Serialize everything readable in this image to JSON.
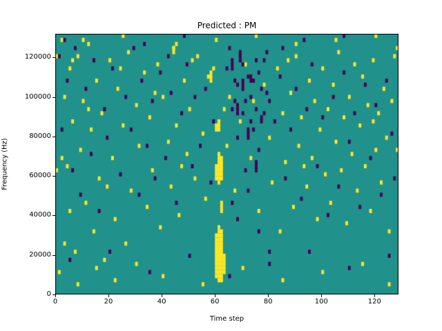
{
  "chart_data": {
    "type": "heatmap",
    "title": "Predicted : PM",
    "xlabel": "Time step",
    "ylabel": "Frequency (Hz)",
    "xlim": [
      0,
      129
    ],
    "ylim": [
      0,
      132000
    ],
    "x_bins": 129,
    "y_bins": 64,
    "xticks": [
      0,
      20,
      40,
      60,
      80,
      100,
      120
    ],
    "yticks": [
      0,
      20000,
      40000,
      60000,
      80000,
      100000,
      120000
    ],
    "grid": false,
    "legend": null,
    "colors": {
      "background": "#21918c",
      "high": "#fde725",
      "low": "#440154",
      "axis": "#000000"
    },
    "yellow_runs": [
      [
        60,
        4,
        14
      ],
      [
        61,
        3,
        16
      ],
      [
        62,
        3,
        15
      ],
      [
        63,
        5,
        9
      ],
      [
        60,
        28,
        31
      ],
      [
        61,
        27,
        34
      ],
      [
        62,
        28,
        33
      ],
      [
        60,
        40,
        41
      ],
      [
        61,
        40,
        42
      ],
      [
        62,
        20,
        22
      ],
      [
        58,
        52,
        54
      ],
      [
        44,
        59,
        60
      ]
    ],
    "purple_runs": [
      [
        66,
        55,
        57
      ],
      [
        68,
        44,
        46
      ],
      [
        70,
        50,
        52
      ],
      [
        72,
        38,
        40
      ],
      [
        75,
        30,
        32
      ],
      [
        69,
        57,
        59
      ],
      [
        73,
        52,
        53
      ],
      [
        77,
        42,
        43
      ]
    ],
    "yellow_cells": [
      [
        2,
        62
      ],
      [
        3,
        48
      ],
      [
        4,
        31
      ],
      [
        5,
        55
      ],
      [
        5,
        20
      ],
      [
        6,
        42
      ],
      [
        7,
        10
      ],
      [
        8,
        58
      ],
      [
        9,
        35
      ],
      [
        10,
        47
      ],
      [
        11,
        22
      ],
      [
        12,
        61
      ],
      [
        13,
        40
      ],
      [
        14,
        15
      ],
      [
        15,
        52
      ],
      [
        16,
        28
      ],
      [
        17,
        44
      ],
      [
        18,
        8
      ],
      [
        20,
        57
      ],
      [
        21,
        33
      ],
      [
        22,
        18
      ],
      [
        23,
        50
      ],
      [
        25,
        41
      ],
      [
        26,
        12
      ],
      [
        27,
        59
      ],
      [
        28,
        25
      ],
      [
        30,
        46
      ],
      [
        31,
        36
      ],
      [
        33,
        54
      ],
      [
        34,
        21
      ],
      [
        35,
        43
      ],
      [
        36,
        30
      ],
      [
        38,
        56
      ],
      [
        39,
        16
      ],
      [
        40,
        48
      ],
      [
        42,
        37
      ],
      [
        43,
        26
      ],
      [
        44,
        60
      ],
      [
        45,
        41
      ],
      [
        46,
        19
      ],
      [
        48,
        52
      ],
      [
        49,
        34
      ],
      [
        50,
        45
      ],
      [
        52,
        28
      ],
      [
        53,
        58
      ],
      [
        55,
        39
      ],
      [
        56,
        23
      ],
      [
        57,
        53
      ],
      [
        59,
        55
      ],
      [
        64,
        36
      ],
      [
        65,
        48
      ],
      [
        67,
        25
      ],
      [
        69,
        42
      ],
      [
        71,
        56
      ],
      [
        73,
        33
      ],
      [
        74,
        47
      ],
      [
        76,
        20
      ],
      [
        78,
        51
      ],
      [
        80,
        38
      ],
      [
        81,
        27
      ],
      [
        83,
        55
      ],
      [
        84,
        15
      ],
      [
        85,
        44
      ],
      [
        86,
        32
      ],
      [
        88,
        49
      ],
      [
        89,
        21
      ],
      [
        90,
        58
      ],
      [
        91,
        36
      ],
      [
        92,
        43
      ],
      [
        94,
        26
      ],
      [
        95,
        52
      ],
      [
        96,
        33
      ],
      [
        97,
        47
      ],
      [
        98,
        18
      ],
      [
        99,
        40
      ],
      [
        100,
        55
      ],
      [
        101,
        29
      ],
      [
        102,
        45
      ],
      [
        103,
        22
      ],
      [
        104,
        51
      ],
      [
        105,
        37
      ],
      [
        106,
        59
      ],
      [
        107,
        30
      ],
      [
        108,
        43
      ],
      [
        109,
        17
      ],
      [
        110,
        48
      ],
      [
        111,
        34
      ],
      [
        112,
        56
      ],
      [
        113,
        25
      ],
      [
        114,
        41
      ],
      [
        115,
        53
      ],
      [
        116,
        31
      ],
      [
        117,
        46
      ],
      [
        118,
        20
      ],
      [
        119,
        57
      ],
      [
        120,
        35
      ],
      [
        121,
        44
      ],
      [
        122,
        27
      ],
      [
        123,
        50
      ],
      [
        124,
        38
      ],
      [
        125,
        15
      ],
      [
        126,
        47
      ],
      [
        127,
        58
      ],
      [
        1,
        5
      ],
      [
        3,
        12
      ],
      [
        8,
        2
      ],
      [
        15,
        6
      ],
      [
        22,
        3
      ],
      [
        30,
        7
      ],
      [
        40,
        4
      ],
      [
        55,
        2
      ],
      [
        70,
        6
      ],
      [
        85,
        3
      ],
      [
        100,
        5
      ],
      [
        115,
        7
      ],
      [
        125,
        2
      ],
      [
        10,
        62
      ],
      [
        25,
        63
      ],
      [
        45,
        61
      ],
      [
        60,
        62
      ],
      [
        75,
        63
      ],
      [
        90,
        61
      ],
      [
        105,
        62
      ],
      [
        120,
        63
      ],
      [
        2,
        33
      ],
      [
        6,
        57
      ],
      [
        12,
        45
      ],
      [
        19,
        26
      ],
      [
        24,
        55
      ],
      [
        37,
        49
      ],
      [
        47,
        31
      ],
      [
        51,
        57
      ],
      [
        63,
        45
      ],
      [
        87,
        57
      ],
      [
        93,
        31
      ],
      [
        119,
        42
      ],
      [
        128,
        35
      ],
      [
        128,
        60
      ],
      [
        0,
        30
      ],
      [
        0,
        58
      ]
    ],
    "purple_cells": [
      [
        1,
        58
      ],
      [
        2,
        40
      ],
      [
        4,
        52
      ],
      [
        6,
        30
      ],
      [
        7,
        60
      ],
      [
        9,
        24
      ],
      [
        11,
        50
      ],
      [
        13,
        34
      ],
      [
        14,
        57
      ],
      [
        16,
        20
      ],
      [
        18,
        45
      ],
      [
        19,
        38
      ],
      [
        21,
        55
      ],
      [
        24,
        29
      ],
      [
        26,
        48
      ],
      [
        28,
        40
      ],
      [
        29,
        60
      ],
      [
        31,
        24
      ],
      [
        32,
        52
      ],
      [
        34,
        36
      ],
      [
        36,
        47
      ],
      [
        37,
        28
      ],
      [
        39,
        54
      ],
      [
        41,
        33
      ],
      [
        43,
        49
      ],
      [
        45,
        22
      ],
      [
        47,
        44
      ],
      [
        49,
        56
      ],
      [
        51,
        31
      ],
      [
        52,
        48
      ],
      [
        54,
        36
      ],
      [
        56,
        50
      ],
      [
        58,
        27
      ],
      [
        59,
        42
      ],
      [
        64,
        55
      ],
      [
        65,
        60
      ],
      [
        66,
        45
      ],
      [
        67,
        52
      ],
      [
        68,
        38
      ],
      [
        69,
        58
      ],
      [
        70,
        44
      ],
      [
        71,
        30
      ],
      [
        72,
        53
      ],
      [
        73,
        48
      ],
      [
        74,
        40
      ],
      [
        75,
        57
      ],
      [
        76,
        35
      ],
      [
        77,
        50
      ],
      [
        78,
        44
      ],
      [
        79,
        59
      ],
      [
        80,
        47
      ],
      [
        66,
        22
      ],
      [
        68,
        18
      ],
      [
        72,
        25
      ],
      [
        76,
        15
      ],
      [
        80,
        10
      ],
      [
        82,
        42
      ],
      [
        84,
        53
      ],
      [
        86,
        28
      ],
      [
        88,
        40
      ],
      [
        90,
        50
      ],
      [
        92,
        23
      ],
      [
        94,
        45
      ],
      [
        96,
        56
      ],
      [
        98,
        31
      ],
      [
        100,
        43
      ],
      [
        102,
        19
      ],
      [
        104,
        48
      ],
      [
        106,
        26
      ],
      [
        108,
        54
      ],
      [
        110,
        37
      ],
      [
        112,
        44
      ],
      [
        114,
        21
      ],
      [
        116,
        51
      ],
      [
        118,
        33
      ],
      [
        120,
        46
      ],
      [
        122,
        24
      ],
      [
        124,
        52
      ],
      [
        126,
        39
      ],
      [
        127,
        28
      ],
      [
        5,
        8
      ],
      [
        20,
        10
      ],
      [
        35,
        5
      ],
      [
        50,
        9
      ],
      [
        65,
        4
      ],
      [
        80,
        7
      ],
      [
        95,
        10
      ],
      [
        110,
        6
      ],
      [
        125,
        9
      ],
      [
        42,
        58
      ],
      [
        85,
        60
      ],
      [
        3,
        62
      ],
      [
        48,
        63
      ],
      [
        93,
        62
      ],
      [
        33,
        61
      ],
      [
        108,
        63
      ],
      [
        67,
        47
      ],
      [
        70,
        56
      ],
      [
        74,
        52
      ],
      [
        78,
        57
      ],
      [
        71,
        47
      ],
      [
        73,
        42
      ],
      [
        76,
        54
      ],
      [
        79,
        49
      ],
      [
        68,
        51
      ],
      [
        75,
        45
      ]
    ]
  }
}
